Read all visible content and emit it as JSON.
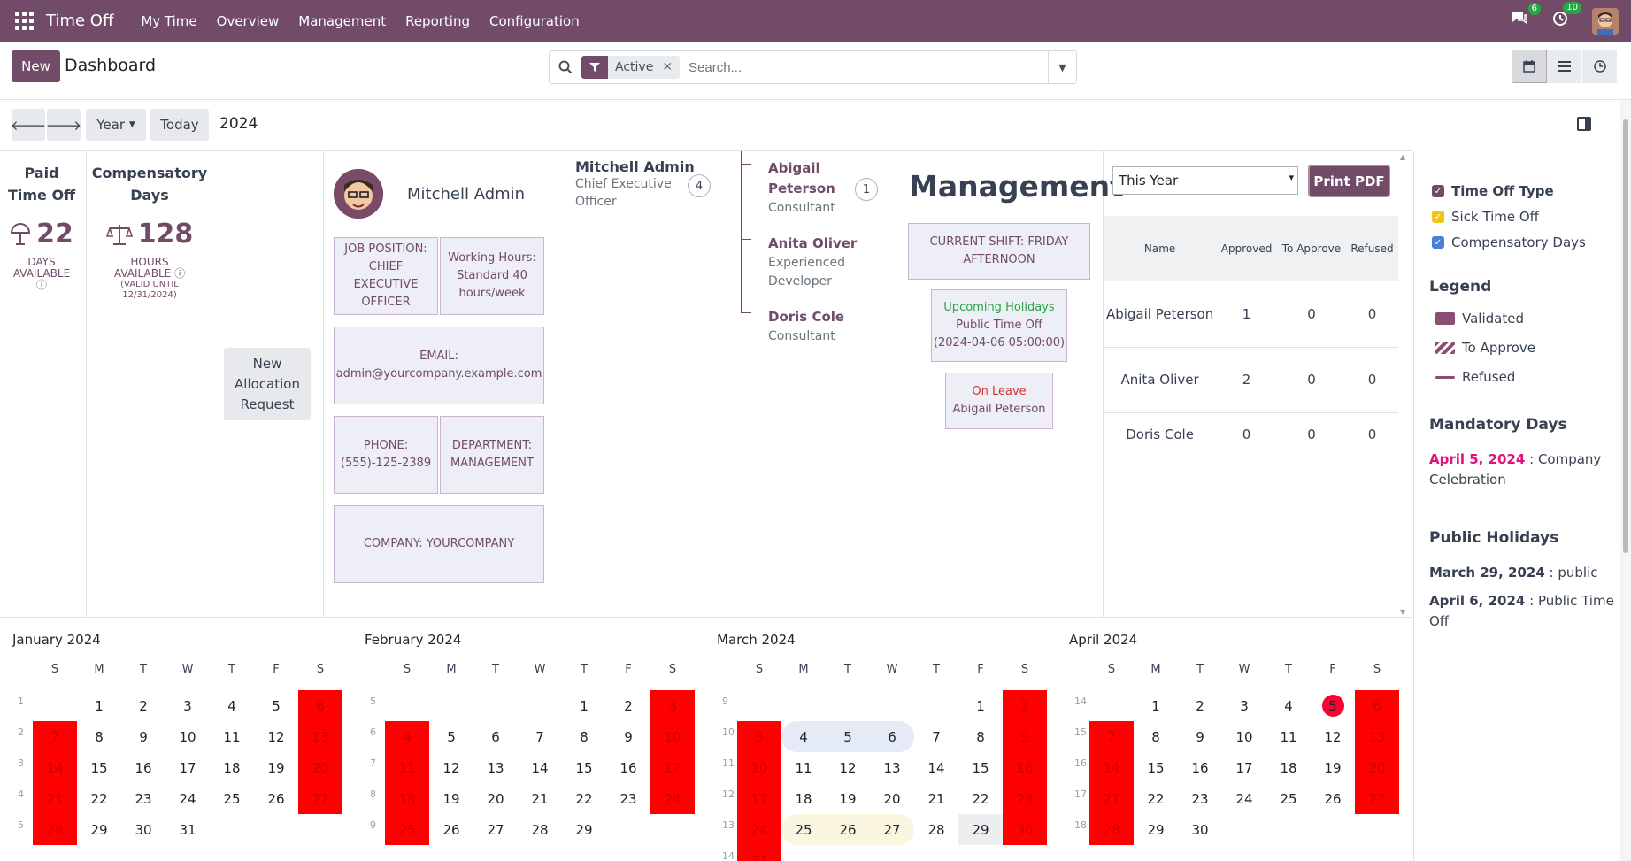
{
  "navbar": {
    "app_title": "Time Off",
    "menu": [
      "My Time",
      "Overview",
      "Management",
      "Reporting",
      "Configuration"
    ],
    "chat_count": "6",
    "activity_count": "10"
  },
  "control": {
    "new_label": "New",
    "title": "Dashboard",
    "facet_value": "Active",
    "search_placeholder": "Search..."
  },
  "datenav": {
    "scale_label": "Year",
    "today_label": "Today",
    "year": "2024"
  },
  "allocations": [
    {
      "title_line1": "Paid",
      "title_line2": "Time Off",
      "value": "22",
      "unit": "DAYS",
      "unit2": "AVAILABLE",
      "note": ""
    },
    {
      "title_line1": "Compensatory",
      "title_line2": "Days",
      "value": "128",
      "unit": "HOURS",
      "unit2": "AVAILABLE",
      "note": "(VALID UNTIL",
      "note2": "12/31/2024)"
    }
  ],
  "new_allocation": {
    "line1": "New",
    "line2": "Allocation",
    "line3": "Request"
  },
  "employee": {
    "name": "Mitchell Admin",
    "job": "JOB POSITION: CHIEF EXECUTIVE OFFICER",
    "hours": "Working Hours: Standard 40 hours/week",
    "email_label": "EMAIL:",
    "email": "admin@yourcompany.example.com",
    "phone_label": "PHONE:",
    "phone": "(555)-125-2389",
    "department": "DEPARTMENT: MANAGEMENT",
    "company": "COMPANY: YOURCOMPANY"
  },
  "org": {
    "manager": {
      "name": "Mitchell Admin",
      "job_line1": "Chief Executive",
      "job_line2": "Officer",
      "count": "4"
    },
    "subordinates": [
      {
        "name_line1": "Abigail",
        "name_line2": "Peterson",
        "job_line1": "Consultant",
        "job_line2": "",
        "count": "1"
      },
      {
        "name_line1": "Anita Oliver",
        "name_line2": "",
        "job_line1": "Experienced",
        "job_line2": "Developer",
        "count": ""
      },
      {
        "name_line1": "Doris Cole",
        "name_line2": "",
        "job_line1": "Consultant",
        "job_line2": "",
        "count": ""
      }
    ]
  },
  "management": {
    "title": "Management",
    "shift": "CURRENT SHIFT: FRIDAY AFTERNOON",
    "holidays_title": "Upcoming Holidays",
    "holidays_name": "Public Time Off",
    "holidays_date": "(2024-04-06 05:00:00)",
    "leave_title": "On Leave",
    "leave_name": "Abigail Peterson"
  },
  "report": {
    "period": "This Year",
    "print_label": "Print PDF",
    "columns": [
      "Name",
      "Approved",
      "To Approve",
      "Refused"
    ],
    "rows": [
      {
        "name": "Abigail Peterson",
        "approved": "1",
        "to_approve": "0",
        "refused": "0"
      },
      {
        "name": "Anita Oliver",
        "approved": "2",
        "to_approve": "0",
        "refused": "0"
      },
      {
        "name": "Doris Cole",
        "approved": "0",
        "to_approve": "0",
        "refused": "0"
      }
    ]
  },
  "sidebar": {
    "filters": [
      {
        "label": "Time Off Type",
        "color": "#714B67",
        "bold": true
      },
      {
        "label": "Sick Time Off",
        "color": "#f0c419",
        "bold": false
      },
      {
        "label": "Compensatory Days",
        "color": "#4a7fd6",
        "bold": false
      }
    ],
    "legend_title": "Legend",
    "legend": [
      {
        "label": "Validated"
      },
      {
        "label": "To Approve"
      },
      {
        "label": "Refused"
      }
    ],
    "mandatory_title": "Mandatory Days",
    "mandatory_date": "April 5, 2024",
    "mandatory_name": " : Company Celebration",
    "public_title": "Public Holidays",
    "public": [
      {
        "date": "March 29, 2024",
        "name": " : public"
      },
      {
        "date": "April 6, 2024",
        "name": " : Public Time Off"
      }
    ]
  },
  "calendar": {
    "dow": [
      "S",
      "M",
      "T",
      "W",
      "T",
      "F",
      "S"
    ],
    "months": [
      {
        "title": "January 2024",
        "start": 1,
        "days": 31,
        "weeks": [
          "1",
          "2",
          "3",
          "4",
          "5"
        ]
      },
      {
        "title": "February 2024",
        "start": 4,
        "days": 29,
        "weeks": [
          "5",
          "6",
          "7",
          "8",
          "9"
        ]
      },
      {
        "title": "March 2024",
        "start": 5,
        "days": 31,
        "weeks": [
          "9",
          "10",
          "11",
          "12",
          "13",
          "14"
        ]
      },
      {
        "title": "April 2024",
        "start": 1,
        "days": 30,
        "weeks": [
          "14",
          "15",
          "16",
          "17",
          "18"
        ]
      }
    ]
  },
  "colors": {
    "brand": "#714B67",
    "weekend": "#ff0000"
  }
}
